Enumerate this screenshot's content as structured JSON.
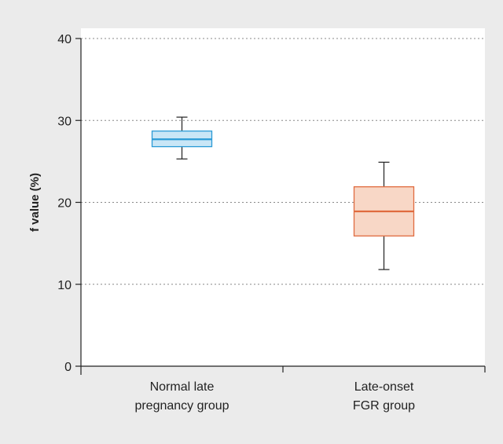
{
  "chart_data": {
    "type": "box",
    "title": "",
    "xlabel": "",
    "ylabel": "f value (%)",
    "ylim": [
      0,
      40
    ],
    "yticks": [
      0,
      10,
      20,
      30,
      40
    ],
    "grid": true,
    "categories": [
      {
        "lines": [
          "Normal late",
          "pregnancy group"
        ]
      },
      {
        "lines": [
          "Late-onset",
          "FGR group"
        ]
      }
    ],
    "series": [
      {
        "whisker_low": 25.3,
        "q1": 26.8,
        "median": 27.7,
        "q3": 28.7,
        "whisker_high": 30.4,
        "fill": "#c9e6f6",
        "stroke": "#2a9ad6"
      },
      {
        "whisker_low": 11.8,
        "q1": 15.9,
        "median": 18.9,
        "q3": 21.9,
        "whisker_high": 24.9,
        "fill": "#f8d7c6",
        "stroke": "#e06b3f"
      }
    ],
    "colors": {
      "background": "#ebebeb",
      "plot_area": "#ffffff",
      "axis": "#222222",
      "grid": "#888888"
    }
  }
}
